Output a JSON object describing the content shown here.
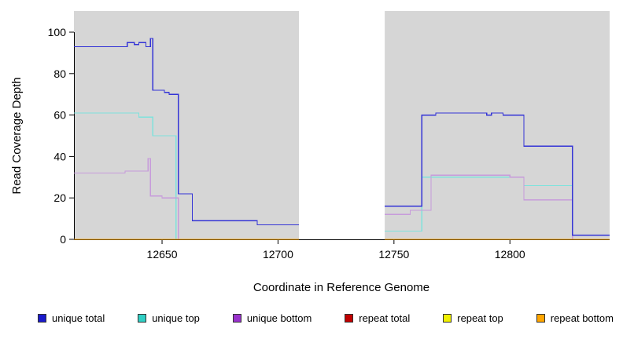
{
  "chart_data": {
    "type": "line",
    "title": "",
    "xlabel": "Coordinate in Reference Genome",
    "ylabel": "Read Coverage Depth",
    "xlim": [
      12612,
      12843
    ],
    "ylim": [
      0,
      100
    ],
    "x_ticks": [
      12650,
      12700,
      12750,
      12800
    ],
    "y_ticks": [
      0,
      20,
      40,
      60,
      80,
      100
    ],
    "plot_bg": "#D6D6D6",
    "gap_region": [
      12709,
      12746
    ],
    "legend_position": "bottom",
    "grid": false,
    "series": [
      {
        "name": "unique total",
        "color": "#1A1ACB",
        "line_color": "#3434D6",
        "segments": [
          [
            [
              12612,
              93
            ],
            [
              12635,
              93
            ],
            [
              12635,
              95
            ],
            [
              12638,
              95
            ],
            [
              12638,
              94
            ],
            [
              12640,
              94
            ],
            [
              12640,
              95
            ],
            [
              12643,
              95
            ],
            [
              12643,
              93
            ],
            [
              12645,
              93
            ],
            [
              12645,
              97
            ],
            [
              12646,
              97
            ],
            [
              12646,
              72
            ],
            [
              12651,
              72
            ],
            [
              12651,
              71
            ],
            [
              12653,
              71
            ],
            [
              12653,
              70
            ],
            [
              12657,
              70
            ],
            [
              12657,
              22
            ],
            [
              12663,
              22
            ],
            [
              12663,
              9
            ],
            [
              12691,
              9
            ],
            [
              12691,
              7
            ],
            [
              12709,
              7
            ]
          ],
          [
            [
              12746,
              16
            ],
            [
              12762,
              16
            ],
            [
              12762,
              60
            ],
            [
              12768,
              60
            ],
            [
              12768,
              61
            ],
            [
              12790,
              61
            ],
            [
              12790,
              60
            ],
            [
              12792,
              60
            ],
            [
              12792,
              61
            ],
            [
              12797,
              61
            ],
            [
              12797,
              60
            ],
            [
              12806,
              60
            ],
            [
              12806,
              45
            ],
            [
              12827,
              45
            ],
            [
              12827,
              2
            ],
            [
              12843,
              2
            ]
          ]
        ]
      },
      {
        "name": "unique top",
        "color": "#30CFC4",
        "line_color": "#7FE2DC",
        "segments": [
          [
            [
              12612,
              61
            ],
            [
              12640,
              61
            ],
            [
              12640,
              59
            ],
            [
              12646,
              59
            ],
            [
              12646,
              50
            ],
            [
              12656,
              50
            ],
            [
              12656,
              0
            ],
            [
              12709,
              0
            ]
          ],
          [
            [
              12746,
              4
            ],
            [
              12762,
              4
            ],
            [
              12762,
              30
            ],
            [
              12806,
              30
            ],
            [
              12806,
              26
            ],
            [
              12827,
              26
            ],
            [
              12827,
              0
            ],
            [
              12843,
              0
            ]
          ]
        ]
      },
      {
        "name": "unique bottom",
        "color": "#9932CC",
        "line_color": "#C79BDB",
        "segments": [
          [
            [
              12612,
              32
            ],
            [
              12634,
              32
            ],
            [
              12634,
              33
            ],
            [
              12644,
              33
            ],
            [
              12644,
              39
            ],
            [
              12645,
              39
            ],
            [
              12645,
              21
            ],
            [
              12650,
              21
            ],
            [
              12650,
              20
            ],
            [
              12657,
              20
            ],
            [
              12657,
              0
            ],
            [
              12709,
              0
            ]
          ],
          [
            [
              12746,
              12
            ],
            [
              12757,
              12
            ],
            [
              12757,
              14
            ],
            [
              12766,
              14
            ],
            [
              12766,
              31
            ],
            [
              12800,
              31
            ],
            [
              12800,
              30
            ],
            [
              12806,
              30
            ],
            [
              12806,
              19
            ],
            [
              12827,
              19
            ],
            [
              12827,
              0
            ],
            [
              12843,
              0
            ]
          ]
        ]
      },
      {
        "name": "repeat total",
        "color": "#C00000",
        "line_color": "#C00000",
        "segments": [
          [
            [
              12612,
              0
            ],
            [
              12709,
              0
            ]
          ],
          [
            [
              12746,
              0
            ],
            [
              12843,
              0
            ]
          ]
        ]
      },
      {
        "name": "repeat top",
        "color": "#F0F000",
        "line_color": "#F0F000",
        "segments": [
          [
            [
              12612,
              0
            ],
            [
              12709,
              0
            ]
          ],
          [
            [
              12746,
              0
            ],
            [
              12843,
              0
            ]
          ]
        ]
      },
      {
        "name": "repeat bottom",
        "color": "#FFA500",
        "line_color": "#FFA500",
        "segments": [
          [
            [
              12612,
              0
            ],
            [
              12709,
              0
            ]
          ],
          [
            [
              12746,
              0
            ],
            [
              12843,
              0
            ]
          ]
        ]
      }
    ]
  }
}
